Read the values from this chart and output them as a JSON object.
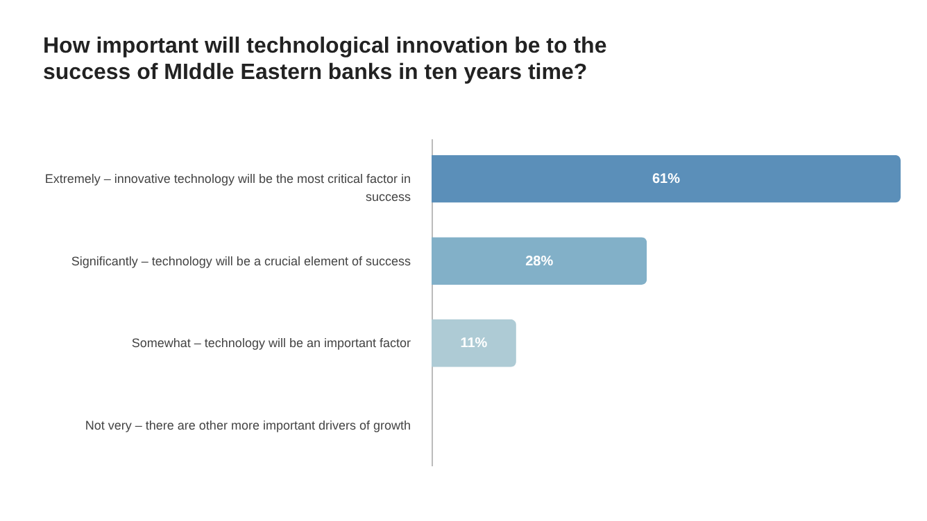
{
  "chart_data": {
    "type": "bar",
    "orientation": "horizontal",
    "title": "How important will technological innovation be to the success of MIddle Eastern banks in ten years time?",
    "categories": [
      "Extremely – innovative technology will be the most critical factor in success",
      "Significantly – technology will be a crucial element of success",
      "Somewhat – technology will be an important factor",
      "Not very – there are other more important drivers of growth"
    ],
    "values": [
      61,
      28,
      11,
      0
    ],
    "colors": [
      "#5b8fb9",
      "#82b0c8",
      "#aecbd5",
      "#d9e6ea"
    ],
    "value_labels": [
      "61%",
      "28%",
      "11%",
      null
    ]
  }
}
